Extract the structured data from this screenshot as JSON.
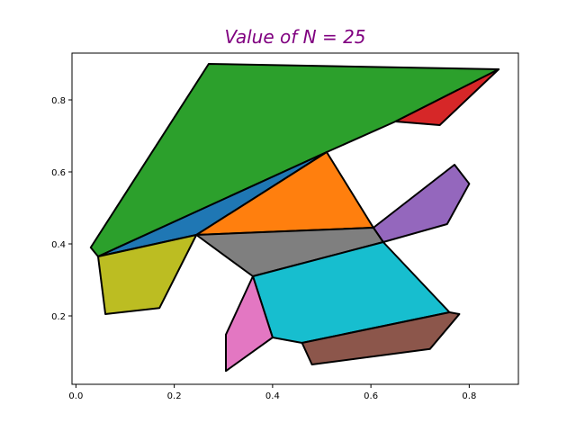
{
  "chart_data": {
    "type": "polygon",
    "title": "Value of N = 25",
    "title_color": "#800080",
    "xlabel": "",
    "ylabel": "",
    "xlim": [
      -0.008,
      0.9
    ],
    "ylim": [
      0.01,
      0.93
    ],
    "xticks": [
      0.0,
      0.2,
      0.4,
      0.6,
      0.8
    ],
    "xtick_labels": [
      "0.0",
      "0.2",
      "0.4",
      "0.6",
      "0.8"
    ],
    "yticks": [
      0.2,
      0.4,
      0.6,
      0.8
    ],
    "ytick_labels": [
      "0.2",
      "0.4",
      "0.6",
      "0.8"
    ],
    "grid": false,
    "edge_color": "#000000",
    "polygons": [
      {
        "color": "#2ca02c",
        "points": [
          [
            0.03,
            0.39
          ],
          [
            0.27,
            0.9
          ],
          [
            0.86,
            0.885
          ],
          [
            0.65,
            0.74
          ],
          [
            0.51,
            0.655
          ],
          [
            0.045,
            0.365
          ]
        ]
      },
      {
        "color": "#d62728",
        "points": [
          [
            0.65,
            0.74
          ],
          [
            0.86,
            0.885
          ],
          [
            0.74,
            0.73
          ]
        ]
      },
      {
        "color": "#1f77b4",
        "points": [
          [
            0.045,
            0.365
          ],
          [
            0.51,
            0.655
          ],
          [
            0.245,
            0.425
          ]
        ]
      },
      {
        "color": "#ff7f0e",
        "points": [
          [
            0.245,
            0.425
          ],
          [
            0.51,
            0.655
          ],
          [
            0.605,
            0.445
          ]
        ]
      },
      {
        "color": "#9467bd",
        "points": [
          [
            0.605,
            0.445
          ],
          [
            0.77,
            0.62
          ],
          [
            0.8,
            0.567
          ],
          [
            0.755,
            0.455
          ],
          [
            0.625,
            0.405
          ]
        ]
      },
      {
        "color": "#7f7f7f",
        "points": [
          [
            0.245,
            0.425
          ],
          [
            0.605,
            0.445
          ],
          [
            0.625,
            0.405
          ],
          [
            0.36,
            0.31
          ]
        ]
      },
      {
        "color": "#bcbd22",
        "points": [
          [
            0.045,
            0.365
          ],
          [
            0.245,
            0.425
          ],
          [
            0.17,
            0.222
          ],
          [
            0.06,
            0.205
          ]
        ]
      },
      {
        "color": "#17becf",
        "points": [
          [
            0.36,
            0.31
          ],
          [
            0.625,
            0.405
          ],
          [
            0.76,
            0.21
          ],
          [
            0.46,
            0.125
          ],
          [
            0.4,
            0.14
          ]
        ]
      },
      {
        "color": "#e377c2",
        "points": [
          [
            0.36,
            0.31
          ],
          [
            0.4,
            0.14
          ],
          [
            0.305,
            0.047
          ],
          [
            0.305,
            0.148
          ]
        ]
      },
      {
        "color": "#8c564b",
        "points": [
          [
            0.46,
            0.125
          ],
          [
            0.76,
            0.21
          ],
          [
            0.78,
            0.205
          ],
          [
            0.72,
            0.108
          ],
          [
            0.48,
            0.065
          ]
        ]
      }
    ]
  }
}
